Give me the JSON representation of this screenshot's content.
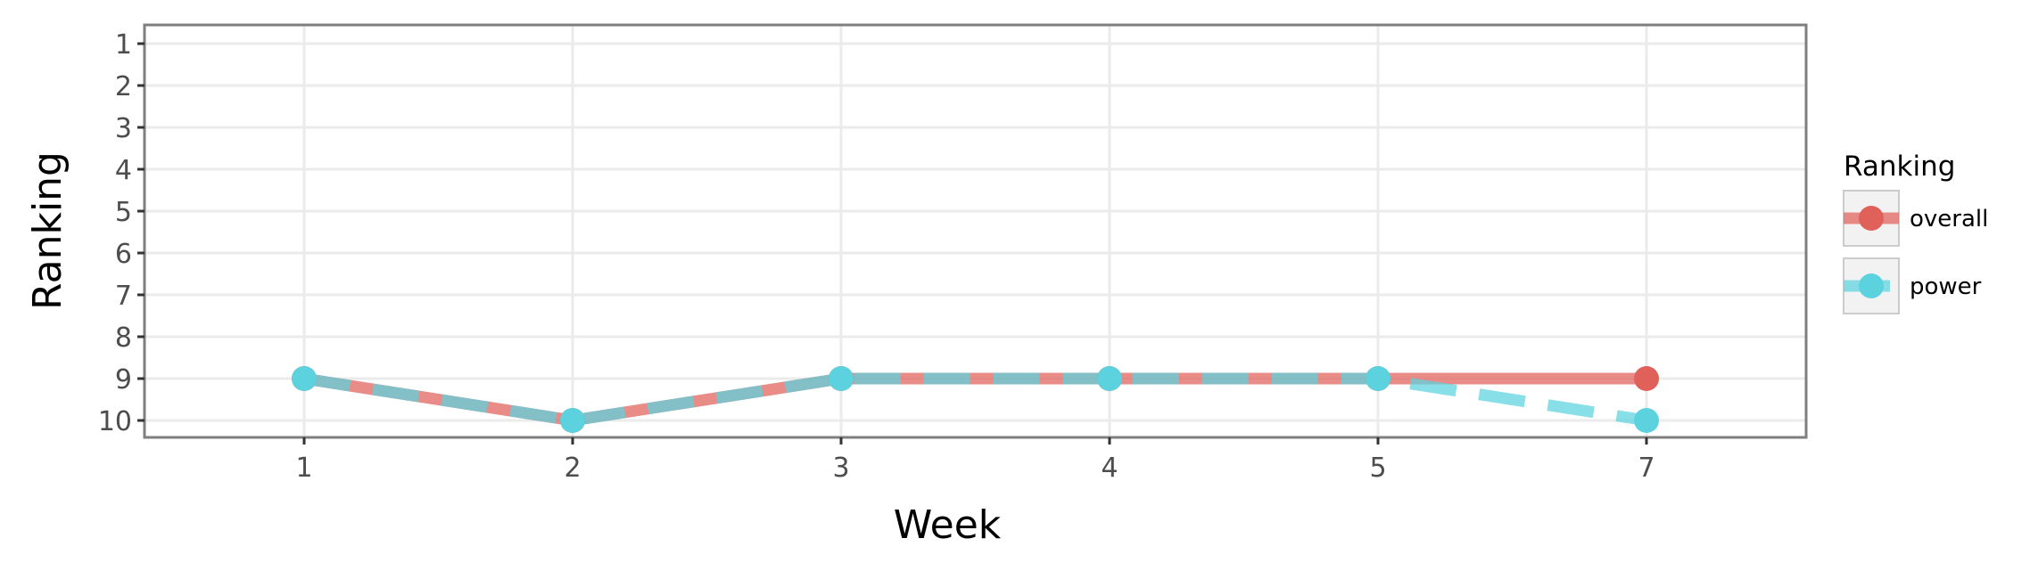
{
  "chart_data": {
    "type": "line",
    "title": "",
    "xlabel": "Week",
    "ylabel": "Ranking",
    "categories": [
      "1",
      "2",
      "3",
      "4",
      "5",
      "7"
    ],
    "y_ticks": [
      "1",
      "2",
      "3",
      "4",
      "5",
      "6",
      "7",
      "8",
      "9",
      "10"
    ],
    "ylim": [
      1,
      10
    ],
    "y_reversed": true,
    "grid": true,
    "legend": {
      "title": "Ranking",
      "position": "right",
      "entries": [
        "overall",
        "power"
      ]
    },
    "series": [
      {
        "name": "overall",
        "color": "#E0605A",
        "line_style": "solid",
        "values": [
          9,
          10,
          9,
          9,
          9,
          9
        ]
      },
      {
        "name": "power",
        "color": "#5BD2DE",
        "line_style": "dashed",
        "values": [
          9,
          10,
          9,
          9,
          9,
          10
        ]
      }
    ]
  }
}
